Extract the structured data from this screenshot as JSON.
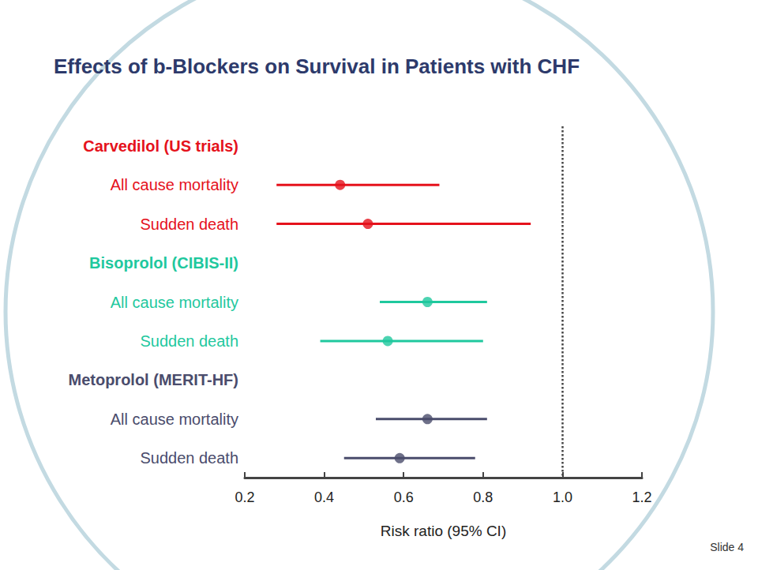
{
  "chart_data": {
    "type": "forest",
    "title": "Effects of b-Blockers on Survival in Patients with CHF",
    "xlabel": "Risk ratio (95% CI)",
    "xlim": [
      0.2,
      1.2
    ],
    "xticks": [
      0.2,
      0.4,
      0.6,
      0.8,
      {
        "value": 1,
        "label": "1.0"
      },
      1.2
    ],
    "reference_line": 1,
    "grid": false,
    "marker": "circle",
    "footer": "Slide 4",
    "series": [
      {
        "name": "Carvedilol (US trials)",
        "color": "#e5121c",
        "categories": [
          "All cause mortality",
          "Sudden death"
        ],
        "values": [
          0.44,
          0.51
        ],
        "ci_lower": [
          0.28,
          0.28
        ],
        "ci_upper": [
          0.69,
          0.92
        ]
      },
      {
        "name": "Bisoprolol (CIBIS-II)",
        "color": "#1fc89e",
        "categories": [
          "All cause mortality",
          "Sudden death"
        ],
        "values": [
          0.66,
          0.56
        ],
        "ci_lower": [
          0.54,
          0.39
        ],
        "ci_upper": [
          0.81,
          0.8
        ]
      },
      {
        "name": "Metoprolol (MERIT-HF)",
        "color": "#4a4c6c",
        "categories": [
          "All cause mortality",
          "Sudden death"
        ],
        "values": [
          0.66,
          0.59
        ],
        "ci_lower": [
          0.53,
          0.45
        ],
        "ci_upper": [
          0.81,
          0.78
        ]
      }
    ]
  }
}
